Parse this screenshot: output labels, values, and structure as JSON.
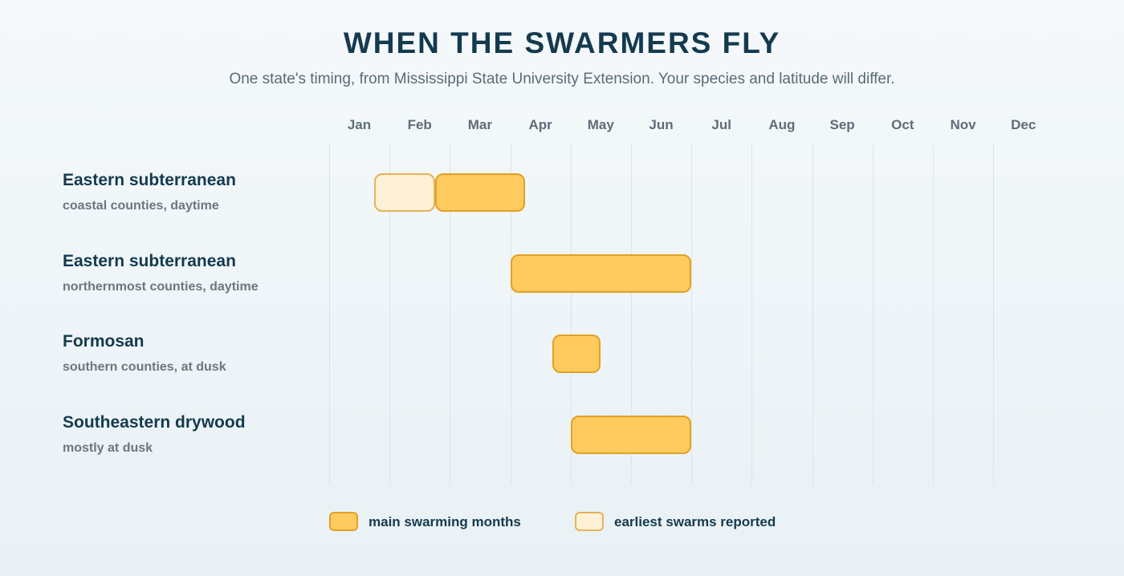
{
  "chart_data": {
    "type": "gantt",
    "title": "WHEN THE SWARMERS FLY",
    "subtitle": "One state's timing, from Mississippi State University Extension. Your species and latitude will differ.",
    "months": [
      "Jan",
      "Feb",
      "Mar",
      "Apr",
      "May",
      "Jun",
      "Jul",
      "Aug",
      "Sep",
      "Oct",
      "Nov",
      "Dec"
    ],
    "rows": [
      {
        "name": "Eastern subterranean",
        "note": "coastal counties, daytime",
        "bars": [
          {
            "kind": "early",
            "start_month": 1.75,
            "end_month": 2.75
          },
          {
            "kind": "main",
            "start_month": 2.75,
            "end_month": 4.25
          }
        ]
      },
      {
        "name": "Eastern subterranean",
        "note": "northernmost counties, daytime",
        "bars": [
          {
            "kind": "main",
            "start_month": 4.0,
            "end_month": 7.0
          }
        ]
      },
      {
        "name": "Formosan",
        "note": "southern counties, at dusk",
        "bars": [
          {
            "kind": "main",
            "start_month": 4.7,
            "end_month": 5.5
          }
        ]
      },
      {
        "name": "Southeastern drywood",
        "note": "mostly at dusk",
        "bars": [
          {
            "kind": "main",
            "start_month": 5.0,
            "end_month": 7.0
          }
        ]
      }
    ],
    "legend": [
      {
        "kind": "main",
        "label": "main swarming months"
      },
      {
        "kind": "early",
        "label": "earliest swarms reported"
      }
    ],
    "colors": {
      "main_fill": "#ffcb5e",
      "early_fill": "#fff1d5",
      "bar_border": "#e0a126"
    }
  }
}
